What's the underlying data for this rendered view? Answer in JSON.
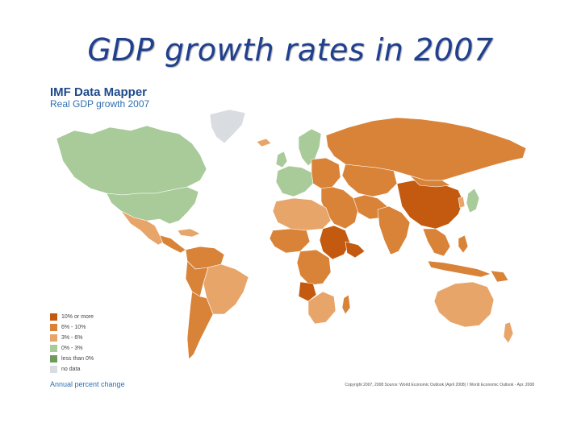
{
  "slide": {
    "title": "GDP growth rates in 2007"
  },
  "map": {
    "source_name": "IMF Data Mapper",
    "subtitle": "Real GDP growth 2007",
    "caption": "Annual percent change",
    "copyright": "Copyright 2007, 2008 Source: World Economic Outlook (April 2008) / World Economic Outlook - Apr. 2008",
    "colors": {
      "c10": "#c35a0f",
      "c6": "#d98338",
      "c3": "#e8a56a",
      "c0": "#a9cb9a",
      "neg": "#6f9a5e",
      "nodata": "#d9dce0",
      "ocean": "#ffffff"
    },
    "legend": [
      {
        "label": "10% or more",
        "color": "#c35a0f"
      },
      {
        "label": "6% - 10%",
        "color": "#d98338"
      },
      {
        "label": "3% - 6%",
        "color": "#e8a56a"
      },
      {
        "label": "0% - 3%",
        "color": "#a9cb9a"
      },
      {
        "label": "less than 0%",
        "color": "#6f9a5e"
      },
      {
        "label": "no data",
        "color": "#d9dce0"
      }
    ]
  }
}
